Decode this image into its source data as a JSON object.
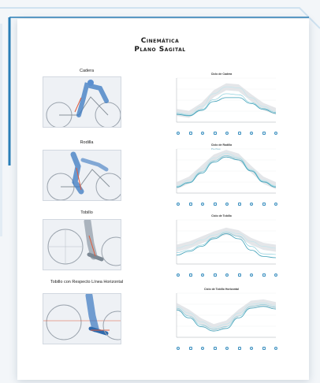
{
  "document": {
    "title_line1": "Cinemática",
    "title_line2": "Plano Sagital"
  },
  "rows": [
    {
      "label": "Cadera",
      "chart_title": "Ciclo de Cadera",
      "legend": ""
    },
    {
      "label": "Rodilla",
      "chart_title": "Ciclo de Rodilla",
      "legend": "Pre   Post"
    },
    {
      "label": "Tobillo",
      "chart_title": "Ciclo de Tobillo",
      "legend": ""
    },
    {
      "label": "Tobillo con Respecto Línea Horizontal",
      "chart_title": "Ciclo de Tobillo Horizontal",
      "legend": ""
    }
  ],
  "chart_data": [
    {
      "type": "line",
      "title": "Ciclo de Cadera",
      "x": [
        0,
        45,
        90,
        135,
        180,
        225,
        270,
        315,
        360
      ],
      "series": [
        {
          "values": [
            40,
            36,
            52,
            78,
            92,
            90,
            70,
            52,
            42
          ]
        },
        {
          "values": [
            38,
            34,
            46,
            66,
            78,
            76,
            60,
            48,
            40
          ]
        },
        {
          "values": [
            36,
            33,
            44,
            62,
            70,
            70,
            58,
            46,
            38
          ]
        }
      ],
      "ylim": [
        20,
        110
      ]
    },
    {
      "type": "line",
      "title": "Ciclo de Rodilla",
      "x": [
        0,
        45,
        90,
        135,
        180,
        225,
        270,
        315,
        360
      ],
      "series": [
        {
          "values": [
            30,
            45,
            75,
            105,
            118,
            108,
            75,
            45,
            30
          ]
        },
        {
          "values": [
            28,
            40,
            68,
            98,
            112,
            104,
            72,
            42,
            28
          ]
        },
        {
          "values": [
            26,
            38,
            64,
            94,
            108,
            100,
            70,
            40,
            26
          ]
        }
      ],
      "ylim": [
        10,
        130
      ]
    },
    {
      "type": "line",
      "title": "Ciclo de Tobillo",
      "x": [
        0,
        45,
        90,
        135,
        180,
        225,
        270,
        315,
        360
      ],
      "series": [
        {
          "values": [
            55,
            60,
            68,
            76,
            82,
            78,
            66,
            58,
            55
          ]
        },
        {
          "values": [
            48,
            52,
            60,
            72,
            80,
            74,
            58,
            46,
            45
          ]
        },
        {
          "values": [
            44,
            50,
            58,
            70,
            78,
            70,
            52,
            42,
            40
          ]
        }
      ],
      "ylim": [
        30,
        100
      ]
    },
    {
      "type": "line",
      "title": "Ciclo de Tobillo Horizontal",
      "x": [
        0,
        45,
        90,
        135,
        180,
        225,
        270,
        315,
        360
      ],
      "series": [
        {
          "values": [
            70,
            55,
            35,
            22,
            30,
            55,
            75,
            78,
            72
          ]
        },
        {
          "values": [
            66,
            48,
            28,
            18,
            24,
            48,
            70,
            74,
            68
          ]
        },
        {
          "values": [
            62,
            44,
            24,
            14,
            20,
            44,
            66,
            70,
            64
          ]
        }
      ],
      "ylim": [
        0,
        100
      ]
    }
  ],
  "colors": {
    "band": "#d9dcdf",
    "series_light": "#bfe6ee",
    "series_mid": "#7cc9d8",
    "series_dark": "#3ea0b8",
    "frame_blue": "#2a7fb8"
  }
}
